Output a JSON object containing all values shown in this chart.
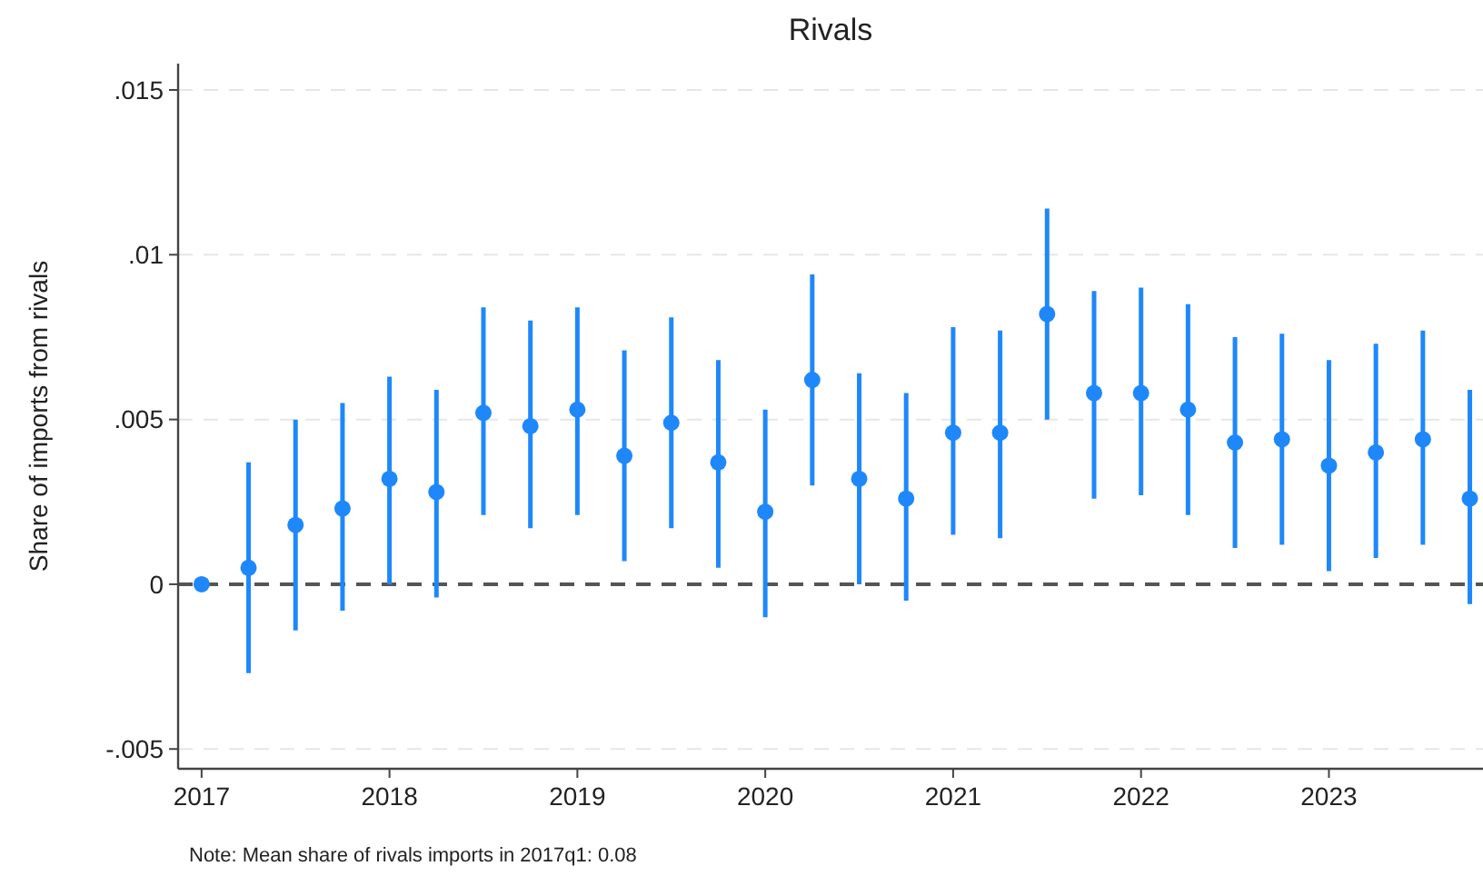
{
  "chart_data": {
    "type": "scatter",
    "title": "Rivals",
    "ylabel": "Share of imports from rivals",
    "annotations": [
      "Note: Mean share of rivals imports in 2017q1: 0.08"
    ],
    "x": [
      2017,
      2017.25,
      2017.5,
      2017.75,
      2018,
      2018.25,
      2018.5,
      2018.75,
      2019,
      2019.25,
      2019.5,
      2019.75,
      2020,
      2020.25,
      2020.5,
      2020.75,
      2021,
      2021.25,
      2021.5,
      2021.75,
      2022,
      2022.25,
      2022.5,
      2022.75,
      2023,
      2023.25,
      2023.5,
      2023.75
    ],
    "series": [
      {
        "color": "#1e88fa",
        "values": [
          0,
          0.0005,
          0.0018,
          0.0023,
          0.0032,
          0.0028,
          0.0052,
          0.0048,
          0.0053,
          0.0039,
          0.0049,
          0.0037,
          0.0022,
          0.0062,
          0.0032,
          0.0026,
          0.0046,
          0.0046,
          0.0082,
          0.0058,
          0.0058,
          0.0053,
          0.0043,
          0.0044,
          0.0036,
          0.004,
          0.0044,
          0.0026
        ],
        "errors": [
          null,
          [
            -0.0027,
            0.0037
          ],
          [
            -0.0014,
            0.005
          ],
          [
            -0.0008,
            0.0055
          ],
          [
            0,
            0.0063
          ],
          [
            -0.0004,
            0.0059
          ],
          [
            0.0021,
            0.0084
          ],
          [
            0.0017,
            0.008
          ],
          [
            0.0021,
            0.0084
          ],
          [
            0.0007,
            0.0071
          ],
          [
            0.0017,
            0.0081
          ],
          [
            0.0005,
            0.0068
          ],
          [
            -0.001,
            0.0053
          ],
          [
            0.003,
            0.0094
          ],
          [
            0,
            0.0064
          ],
          [
            -0.0005,
            0.0058
          ],
          [
            0.0015,
            0.0078
          ],
          [
            0.0014,
            0.0077
          ],
          [
            0.005,
            0.0114
          ],
          [
            0.0026,
            0.0089
          ],
          [
            0.0027,
            0.009
          ],
          [
            0.0021,
            0.0085
          ],
          [
            0.0011,
            0.0075
          ],
          [
            0.0012,
            0.0076
          ],
          [
            0.0004,
            0.0068
          ],
          [
            0.0008,
            0.0073
          ],
          [
            0.0012,
            0.0077
          ],
          [
            -0.0006,
            0.0059
          ]
        ]
      }
    ],
    "xlim": [
      2016.875,
      2023.82
    ],
    "xticks": [
      2017,
      2018,
      2019,
      2020,
      2021,
      2022,
      2023
    ],
    "ylim": [
      -0.0056,
      0.0158
    ],
    "yticks": [
      {
        "value": -0.005,
        "label": "-.005"
      },
      0,
      {
        "value": 0.005,
        "label": ".005"
      },
      {
        "value": 0.01,
        "label": ".01"
      },
      {
        "value": 0.015,
        "label": ".015"
      }
    ],
    "ref_lines": [
      {
        "axis": "y",
        "value": 0,
        "color": "#555555",
        "line_style": "dashed"
      }
    ],
    "grid": "y",
    "marker": "circle"
  }
}
